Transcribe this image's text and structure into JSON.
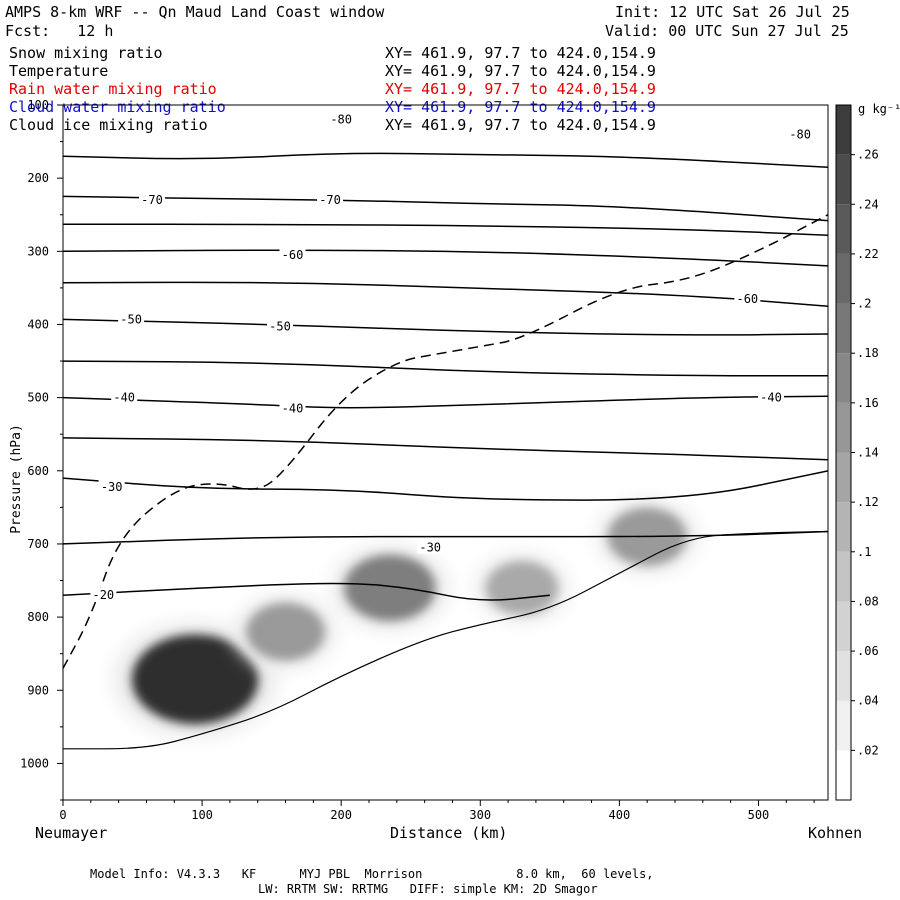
{
  "header": {
    "title": "AMPS 8-km WRF -- Qn Maud Land Coast window",
    "init": "Init: 12 UTC Sat 26 Jul 25",
    "fcst": "Fcst:   12 h",
    "valid": "Valid: 00 UTC Sun 27 Jul 25"
  },
  "fields": [
    {
      "label": "Snow mixing ratio",
      "xy": "XY= 461.9, 97.7 to 424.0,154.9",
      "color": "#000000"
    },
    {
      "label": "Temperature",
      "xy": "XY= 461.9, 97.7 to 424.0,154.9",
      "color": "#000000"
    },
    {
      "label": "Rain water mixing ratio",
      "xy": "XY= 461.9, 97.7 to 424.0,154.9",
      "color": "#ff0000"
    },
    {
      "label": "Cloud water mixing ratio",
      "xy": "XY= 461.9, 97.7 to 424.0,154.9",
      "color": "#0000ff"
    },
    {
      "label": "Cloud ice mixing ratio",
      "xy": "XY= 461.9, 97.7 to 424.0,154.9",
      "color": "#000000"
    }
  ],
  "footer": {
    "line1": "Model Info: V4.3.3   KF      MYJ PBL  Morrison             8.0 km,  60 levels,",
    "line2": "LW: RRTM SW: RRTMG   DIFF: simple KM: 2D Smagor"
  },
  "chart_data": {
    "type": "contour",
    "xlabel": "Distance (km)",
    "ylabel": "Pressure (hPa)",
    "x_endpoints": {
      "left": "Neumayer",
      "right": "Kohnen"
    },
    "xlim": [
      0,
      550
    ],
    "ylim": [
      1050,
      100
    ],
    "x_ticks": [
      0,
      100,
      200,
      300,
      400,
      500
    ],
    "y_ticks": [
      100,
      200,
      300,
      400,
      500,
      600,
      700,
      800,
      900,
      1000
    ],
    "colorbar": {
      "unit": "g kg⁻¹",
      "ticks": [
        ".02",
        ".04",
        ".06",
        ".08",
        ".1",
        ".12",
        ".14",
        ".16",
        ".18",
        ".2",
        ".22",
        ".24",
        ".26"
      ],
      "levels": [
        0.02,
        0.04,
        0.06,
        0.08,
        0.1,
        0.12,
        0.14,
        0.16,
        0.18,
        0.2,
        0.22,
        0.24,
        0.26
      ],
      "max": 0.28
    },
    "temperature_labels": [
      {
        "text": "-80",
        "x": 200,
        "p": 120
      },
      {
        "text": "-80",
        "x": 530,
        "p": 140
      },
      {
        "text": "-70",
        "x": 64,
        "p": 230
      },
      {
        "text": "-70",
        "x": 192,
        "p": 230
      },
      {
        "text": "-60",
        "x": 165,
        "p": 305
      },
      {
        "text": "-60",
        "x": 492,
        "p": 365
      },
      {
        "text": "-50",
        "x": 49,
        "p": 393
      },
      {
        "text": "-50",
        "x": 156,
        "p": 403
      },
      {
        "text": "-40",
        "x": 44,
        "p": 500
      },
      {
        "text": "-40",
        "x": 165,
        "p": 515
      },
      {
        "text": "-40",
        "x": 509,
        "p": 500
      },
      {
        "text": "-30",
        "x": 35,
        "p": 622
      },
      {
        "text": "-30",
        "x": 264,
        "p": 705
      },
      {
        "text": "-20",
        "x": 29,
        "p": 770
      }
    ],
    "temperature_isotherms": [
      {
        "value": -80,
        "points": [
          [
            0,
            170
          ],
          [
            100,
            175
          ],
          [
            200,
            165
          ],
          [
            300,
            168
          ],
          [
            400,
            170
          ],
          [
            550,
            185
          ]
        ]
      },
      {
        "value": -70,
        "points": [
          [
            0,
            225
          ],
          [
            100,
            228
          ],
          [
            200,
            230
          ],
          [
            300,
            235
          ],
          [
            400,
            238
          ],
          [
            550,
            258
          ]
        ]
      },
      {
        "value": -70,
        "points": [
          [
            0,
            263
          ],
          [
            150,
            263
          ],
          [
            300,
            265
          ],
          [
            450,
            270
          ],
          [
            550,
            278
          ]
        ]
      },
      {
        "value": -60,
        "points": [
          [
            0,
            300
          ],
          [
            150,
            298
          ],
          [
            300,
            300
          ],
          [
            450,
            310
          ],
          [
            550,
            320
          ]
        ]
      },
      {
        "value": -60,
        "points": [
          [
            0,
            343
          ],
          [
            150,
            342
          ],
          [
            300,
            350
          ],
          [
            450,
            360
          ],
          [
            550,
            375
          ]
        ]
      },
      {
        "value": -50,
        "points": [
          [
            0,
            393
          ],
          [
            150,
            400
          ],
          [
            300,
            410
          ],
          [
            450,
            415
          ],
          [
            550,
            413
          ]
        ]
      },
      {
        "value": -50,
        "points": [
          [
            0,
            450
          ],
          [
            150,
            452
          ],
          [
            300,
            465
          ],
          [
            450,
            470
          ],
          [
            550,
            470
          ]
        ]
      },
      {
        "value": -40,
        "points": [
          [
            0,
            500
          ],
          [
            150,
            510
          ],
          [
            200,
            515
          ],
          [
            300,
            510
          ],
          [
            450,
            500
          ],
          [
            550,
            498
          ]
        ]
      },
      {
        "value": -40,
        "points": [
          [
            0,
            555
          ],
          [
            150,
            558
          ],
          [
            300,
            570
          ],
          [
            450,
            578
          ],
          [
            550,
            585
          ]
        ]
      },
      {
        "value": -30,
        "points": [
          [
            0,
            610
          ],
          [
            100,
            625
          ],
          [
            200,
            625
          ],
          [
            300,
            640
          ],
          [
            450,
            640
          ],
          [
            550,
            600
          ]
        ]
      },
      {
        "value": -30,
        "points": [
          [
            0,
            700
          ],
          [
            150,
            690
          ],
          [
            300,
            690
          ],
          [
            450,
            690
          ],
          [
            550,
            683
          ]
        ]
      },
      {
        "value": -20,
        "points": [
          [
            0,
            770
          ],
          [
            100,
            760
          ],
          [
            200,
            752
          ],
          [
            250,
            760
          ],
          [
            300,
            780
          ],
          [
            350,
            770
          ]
        ]
      }
    ],
    "cloud_ice_dashed": {
      "points": [
        [
          0,
          870
        ],
        [
          20,
          800
        ],
        [
          40,
          690
        ],
        [
          80,
          625
        ],
        [
          110,
          615
        ],
        [
          140,
          630
        ],
        [
          160,
          600
        ],
        [
          200,
          500
        ],
        [
          240,
          450
        ],
        [
          270,
          440
        ],
        [
          300,
          430
        ],
        [
          330,
          420
        ],
        [
          400,
          350
        ],
        [
          450,
          340
        ],
        [
          500,
          300
        ],
        [
          550,
          250
        ]
      ]
    },
    "snow_maxima": [
      {
        "x": 95,
        "p": 885,
        "value": 0.27
      },
      {
        "x": 160,
        "p": 820,
        "value": 0.12
      },
      {
        "x": 235,
        "p": 760,
        "value": 0.16
      },
      {
        "x": 330,
        "p": 760,
        "value": 0.1
      },
      {
        "x": 420,
        "p": 690,
        "value": 0.12
      }
    ],
    "terrain": {
      "points": [
        [
          0,
          980
        ],
        [
          60,
          980
        ],
        [
          100,
          960
        ],
        [
          150,
          930
        ],
        [
          200,
          880
        ],
        [
          260,
          830
        ],
        [
          300,
          810
        ],
        [
          350,
          790
        ],
        [
          400,
          740
        ],
        [
          450,
          690
        ],
        [
          500,
          685
        ],
        [
          550,
          683
        ]
      ]
    }
  }
}
